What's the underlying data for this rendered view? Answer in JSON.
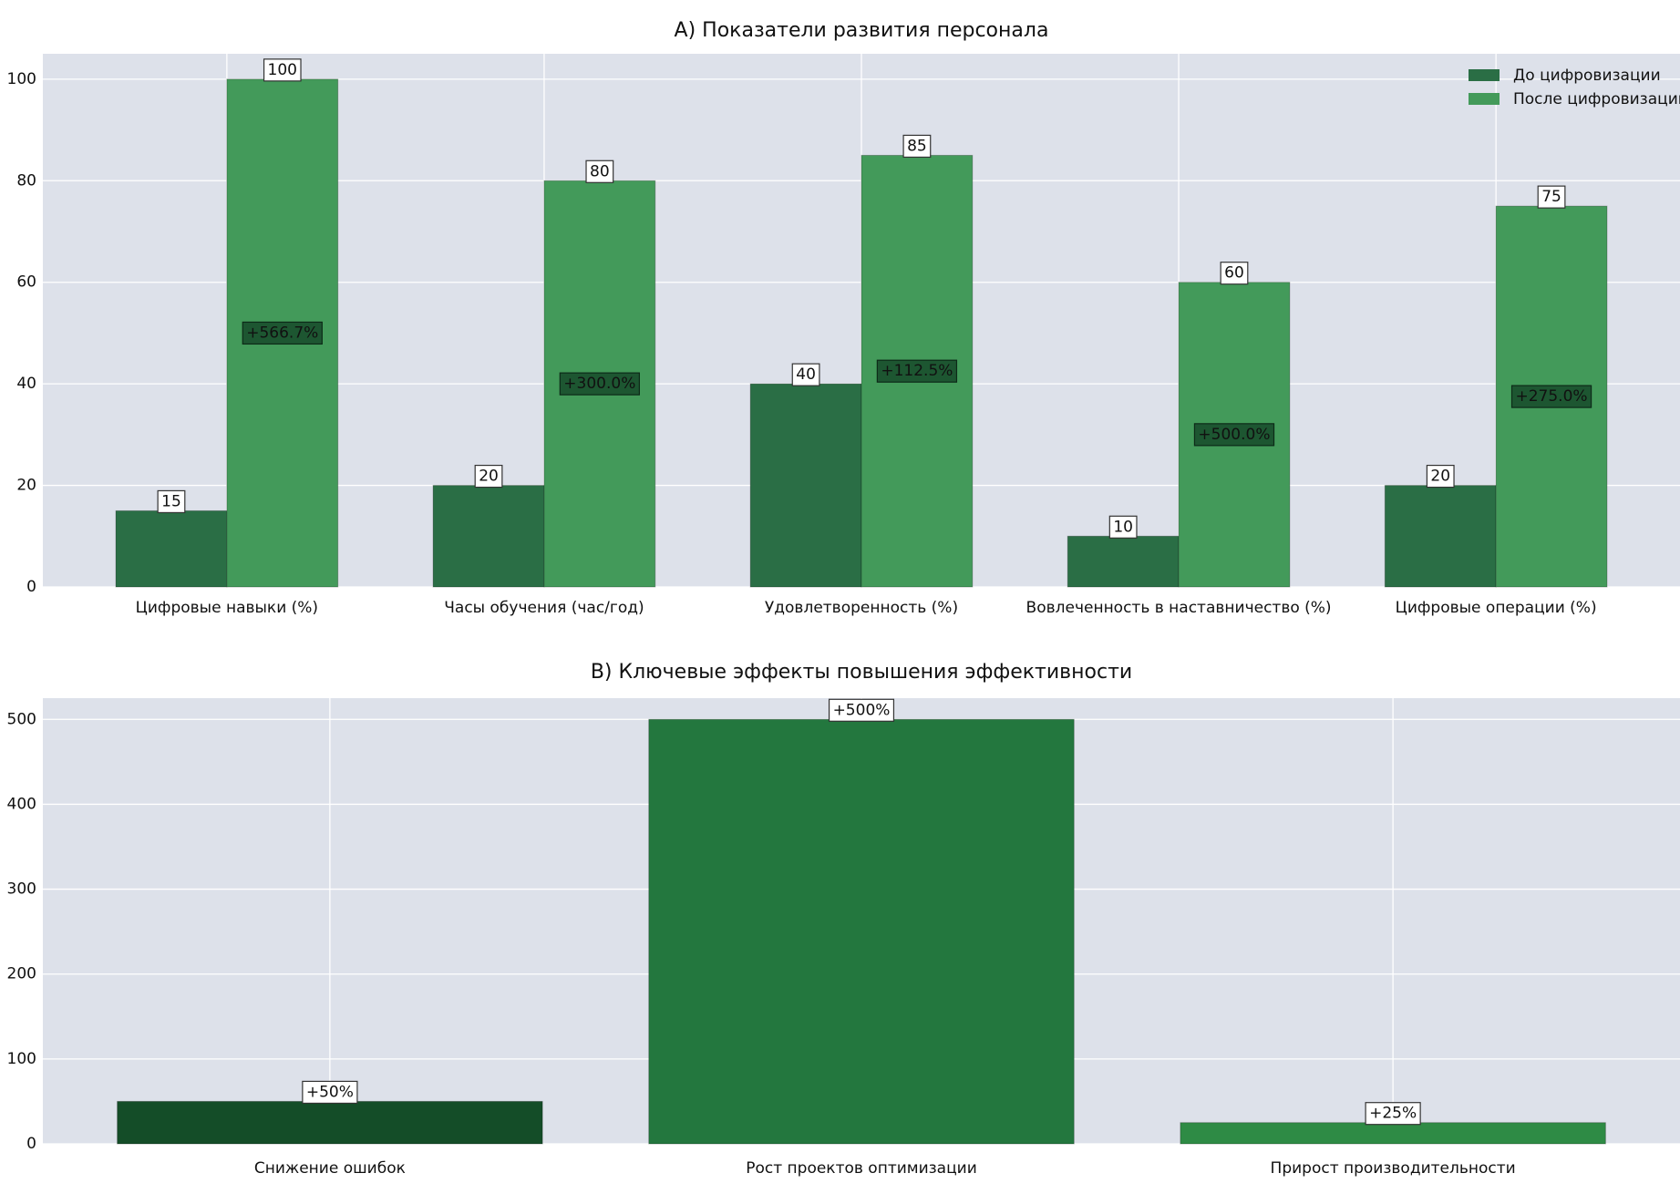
{
  "chart_data": [
    {
      "type": "bar",
      "title": "A) Показатели развития персонала",
      "categories": [
        "Цифровые навыки (%)",
        "Часы обучения (час/год)",
        "Удовлетворенность (%)",
        "Вовлеченность в наставничество (%)",
        "Цифровые операции (%)"
      ],
      "series": [
        {
          "name": "До цифровизации",
          "color": "#2a6e45",
          "values": [
            15,
            20,
            40,
            10,
            20
          ]
        },
        {
          "name": "После цифровизации",
          "color": "#439a5a",
          "values": [
            100,
            80,
            85,
            60,
            75
          ]
        }
      ],
      "annotations": [
        "+566.7%",
        "+300.0%",
        "+112.5%",
        "+500.0%",
        "+275.0%"
      ],
      "ylim": [
        0,
        105
      ],
      "yticks": [
        0,
        20,
        40,
        60,
        80,
        100
      ],
      "grid": true,
      "legend": "upper-right"
    },
    {
      "type": "bar",
      "title": "B) Ключевые эффекты повышения эффективности",
      "categories": [
        "Снижение ошибок",
        "Рост проектов оптимизации",
        "Прирост производительности"
      ],
      "values": [
        50,
        500,
        25
      ],
      "value_labels": [
        "+50%",
        "+500%",
        "+25%"
      ],
      "colors": [
        "#144d28",
        "#23773e",
        "#2e8b45"
      ],
      "ylim": [
        0,
        525
      ],
      "yticks": [
        0,
        100,
        200,
        300,
        400,
        500
      ],
      "grid": true
    }
  ]
}
